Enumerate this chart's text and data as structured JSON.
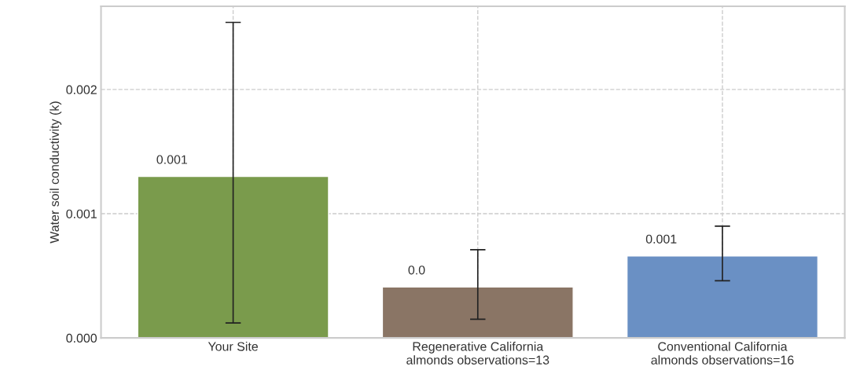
{
  "chart_data": {
    "type": "bar",
    "ylabel": "Water soil conductivity (k)",
    "categories": [
      "Your Site",
      "Regenerative California\nalmonds observations=13",
      "Conventional California\nalmonds observations=16"
    ],
    "values": [
      0.0013,
      0.00041,
      0.00066
    ],
    "colors": [
      "#7a9b4c",
      "#8a7565",
      "#6a90c4"
    ],
    "errors": [
      [
        0.00012,
        0.00254
      ],
      [
        0.00015,
        0.00071
      ],
      [
        0.00046,
        0.0009
      ]
    ],
    "value_labels": [
      "0.001",
      "0.0",
      "0.001"
    ],
    "ylim": [
      0,
      0.00267
    ],
    "yticks": [
      {
        "value": 0,
        "label": "0.000"
      },
      {
        "value": 0.001,
        "label": "0.001"
      },
      {
        "value": 0.002,
        "label": "0.002"
      }
    ],
    "grid": true
  }
}
